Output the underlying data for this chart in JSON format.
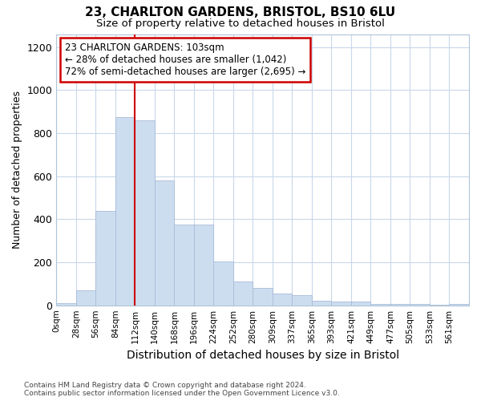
{
  "title1": "23, CHARLTON GARDENS, BRISTOL, BS10 6LU",
  "title2": "Size of property relative to detached houses in Bristol",
  "xlabel": "Distribution of detached houses by size in Bristol",
  "ylabel": "Number of detached properties",
  "bar_labels": [
    "0sqm",
    "28sqm",
    "56sqm",
    "84sqm",
    "112sqm",
    "140sqm",
    "168sqm",
    "196sqm",
    "224sqm",
    "252sqm",
    "280sqm",
    "309sqm",
    "337sqm",
    "365sqm",
    "393sqm",
    "421sqm",
    "449sqm",
    "477sqm",
    "505sqm",
    "533sqm",
    "561sqm"
  ],
  "bar_values": [
    10,
    68,
    440,
    875,
    860,
    580,
    375,
    375,
    205,
    110,
    82,
    55,
    48,
    22,
    16,
    16,
    8,
    5,
    5,
    3,
    5
  ],
  "bar_color": "#ccddf0",
  "bar_edgecolor": "#aabbd8",
  "ylim": [
    0,
    1260
  ],
  "yticks": [
    0,
    200,
    400,
    600,
    800,
    1000,
    1200
  ],
  "annotation_line1": "23 CHARLTON GARDENS: 103sqm",
  "annotation_line2": "← 28% of detached houses are smaller (1,042)",
  "annotation_line3": "72% of semi-detached houses are larger (2,695) →",
  "annotation_box_color": "#ffffff",
  "annotation_box_edgecolor": "#cc0000",
  "red_line_color": "#cc0000",
  "grid_color": "#c8d8ea",
  "bg_color": "#ffffff",
  "fig_bg_color": "#ffffff",
  "footnote1": "Contains HM Land Registry data © Crown copyright and database right 2024.",
  "footnote2": "Contains public sector information licensed under the Open Government Licence v3.0."
}
